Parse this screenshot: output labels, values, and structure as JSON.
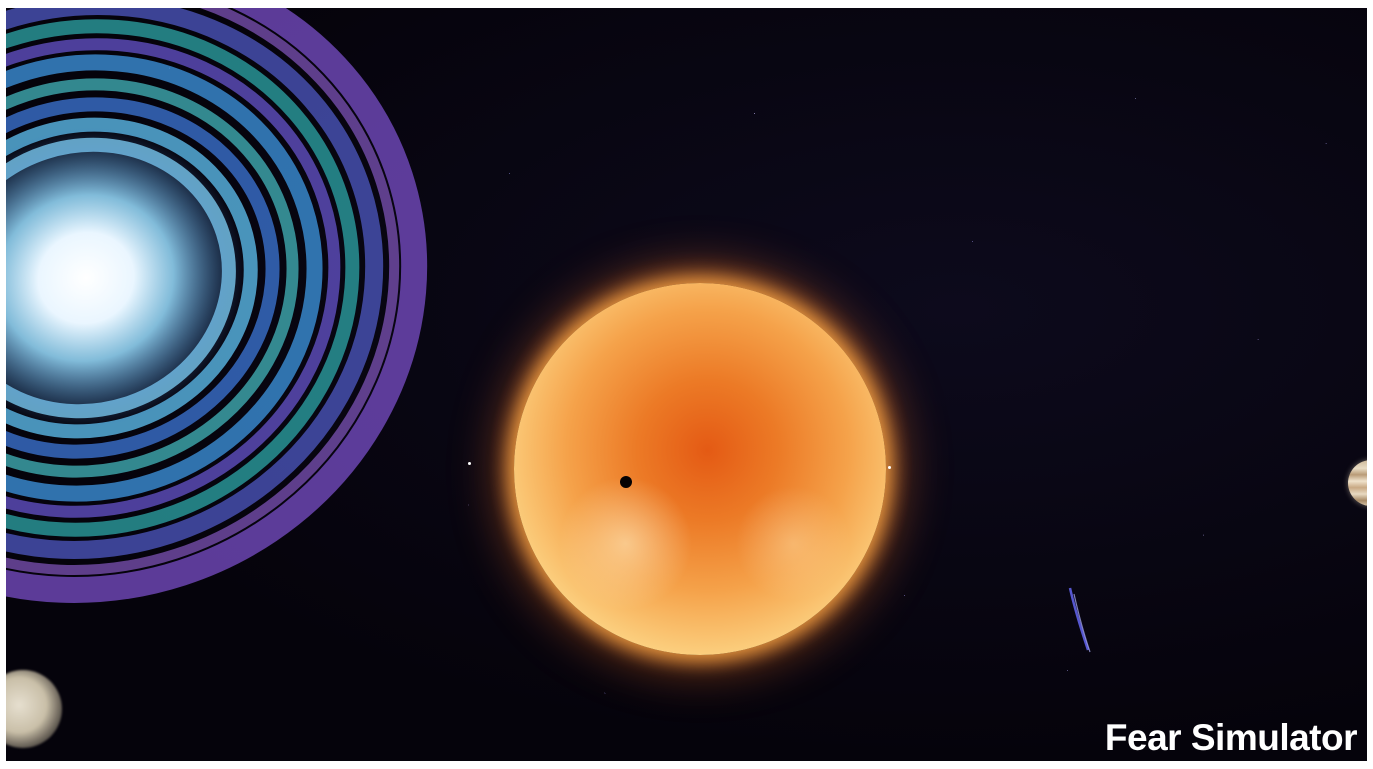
{
  "brand": {
    "title": "Fear Simulator"
  },
  "scene": {
    "background_color": "#06040e",
    "objects": [
      {
        "name": "spiral-galaxy",
        "icon": "galaxy-icon",
        "colors": [
          "#ffffff",
          "#4aa6e0",
          "#3ec6c2",
          "#8a5ce0"
        ]
      },
      {
        "name": "sun",
        "icon": "star-icon",
        "colors": [
          "#e45a14",
          "#fdd98a"
        ]
      },
      {
        "name": "transiting-planet",
        "icon": "planet-dot-icon",
        "color": "#050203"
      },
      {
        "name": "gas-giant",
        "icon": "gas-giant-icon",
        "color": "#cdb89a"
      },
      {
        "name": "pale-planet",
        "icon": "moon-icon",
        "color": "#e6dfcf"
      },
      {
        "name": "comet",
        "icon": "comet-icon",
        "color": "#8a8cff"
      }
    ]
  }
}
